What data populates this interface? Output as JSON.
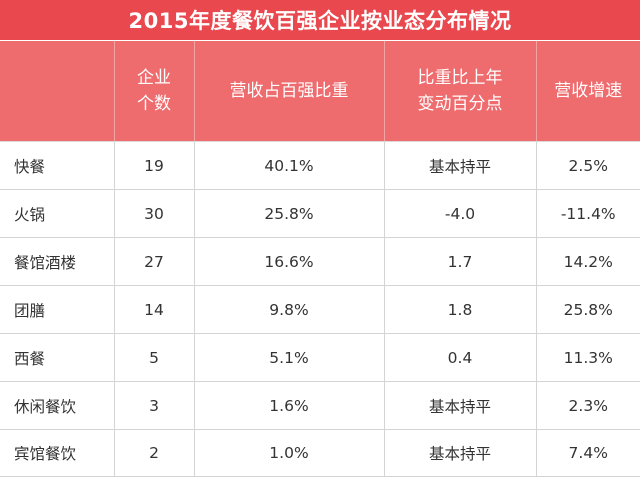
{
  "title": "2015年度餐饮百强企业按业态分布情况",
  "headers": {
    "col1": "",
    "col2_line1": "企业",
    "col2_line2": "个数",
    "col3": "营收占百强比重",
    "col4_line1": "比重比上年",
    "col4_line2": "变动百分点",
    "col5": "营收增速"
  },
  "rows": [
    {
      "category": "快餐",
      "count": "19",
      "share": "40.1%",
      "change": "基本持平",
      "growth": "2.5%"
    },
    {
      "category": "火锅",
      "count": "30",
      "share": "25.8%",
      "change": "-4.0",
      "growth": "-11.4%"
    },
    {
      "category": "餐馆酒楼",
      "count": "27",
      "share": "16.6%",
      "change": "1.7",
      "growth": "14.2%"
    },
    {
      "category": "团膳",
      "count": "14",
      "share": "9.8%",
      "change": "1.8",
      "growth": "25.8%"
    },
    {
      "category": "西餐",
      "count": "5",
      "share": "5.1%",
      "change": "0.4",
      "growth": "11.3%"
    },
    {
      "category": "休闲餐饮",
      "count": "3",
      "share": "1.6%",
      "change": "基本持平",
      "growth": "2.3%"
    },
    {
      "category": "宾馆餐饮",
      "count": "2",
      "share": "1.0%",
      "change": "基本持平",
      "growth": "7.4%"
    }
  ],
  "colors": {
    "title_bg": "#e8484e",
    "header_bg": "#ee6b6e",
    "text": "#333333"
  }
}
